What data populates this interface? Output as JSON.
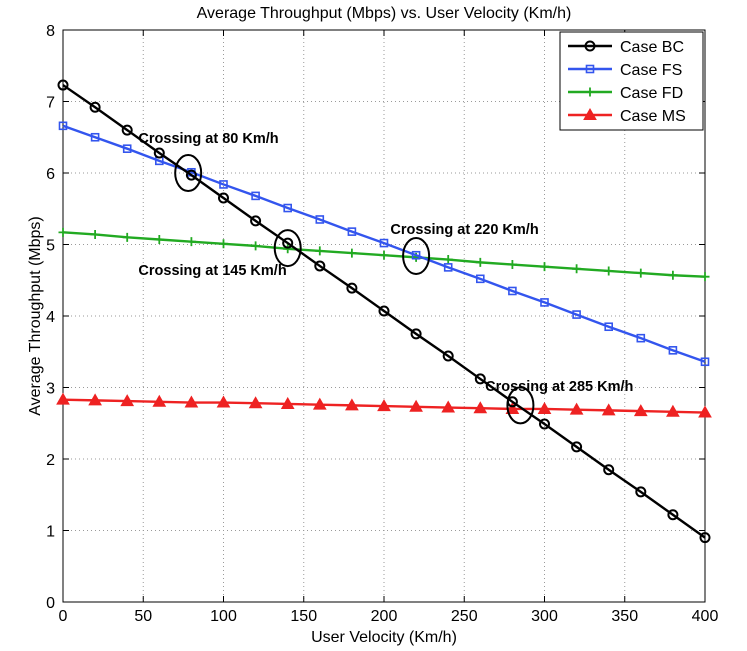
{
  "chart_data": {
    "type": "line",
    "title": "Average Throughput (Mbps) vs. User Velocity (Km/h)",
    "xlabel": "User Velocity (Km/h)",
    "ylabel": "Average Throughput (Mbps)",
    "xlim": [
      0,
      400
    ],
    "ylim": [
      0,
      8
    ],
    "xticks": [
      0,
      50,
      100,
      150,
      200,
      250,
      300,
      350,
      400
    ],
    "yticks": [
      0,
      1,
      2,
      3,
      4,
      5,
      6,
      7,
      8
    ],
    "grid": true,
    "legend_position": "top-right",
    "x": [
      0,
      20,
      40,
      60,
      80,
      100,
      120,
      140,
      160,
      180,
      200,
      220,
      240,
      260,
      280,
      300,
      320,
      340,
      360,
      380,
      400
    ],
    "series": [
      {
        "name": "Case BC",
        "color": "#000000",
        "marker": "circle",
        "values": [
          7.23,
          6.92,
          6.6,
          6.28,
          5.97,
          5.65,
          5.33,
          5.02,
          4.7,
          4.39,
          4.07,
          3.75,
          3.44,
          3.12,
          2.8,
          2.49,
          2.17,
          1.85,
          1.54,
          1.22,
          0.9
        ]
      },
      {
        "name": "Case FS",
        "color": "#3355ee",
        "marker": "square",
        "values": [
          6.66,
          6.5,
          6.34,
          6.17,
          6.01,
          5.84,
          5.68,
          5.51,
          5.35,
          5.18,
          5.02,
          4.85,
          4.68,
          4.52,
          4.35,
          4.19,
          4.02,
          3.85,
          3.69,
          3.52,
          3.36
        ]
      },
      {
        "name": "Case FD",
        "color": "#22aa22",
        "marker": "plus",
        "values": [
          5.17,
          5.14,
          5.1,
          5.07,
          5.04,
          5.01,
          4.98,
          4.94,
          4.91,
          4.88,
          4.85,
          4.82,
          4.79,
          4.75,
          4.72,
          4.69,
          4.66,
          4.63,
          4.6,
          4.57,
          4.55
        ]
      },
      {
        "name": "Case MS",
        "color": "#ee2222",
        "marker": "triangle",
        "values": [
          2.83,
          2.82,
          2.81,
          2.8,
          2.79,
          2.79,
          2.78,
          2.77,
          2.76,
          2.75,
          2.74,
          2.73,
          2.72,
          2.71,
          2.7,
          2.7,
          2.69,
          2.68,
          2.67,
          2.66,
          2.65
        ]
      }
    ],
    "annotations": [
      {
        "text": "Crossing at 80 Km/h",
        "x": 78,
        "y": 6.0,
        "label_x": 47,
        "label_y": 6.42
      },
      {
        "text": "Crossing at 145 Km/h",
        "x": 140,
        "y": 4.95,
        "label_x": 47,
        "label_y": 4.57
      },
      {
        "text": "Crossing at 220 Km/h",
        "x": 220,
        "y": 4.84,
        "label_x": 204,
        "label_y": 5.15
      },
      {
        "text": "Crossing at 285 Km/h",
        "x": 285,
        "y": 2.75,
        "label_x": 263,
        "label_y": 2.95
      }
    ]
  }
}
